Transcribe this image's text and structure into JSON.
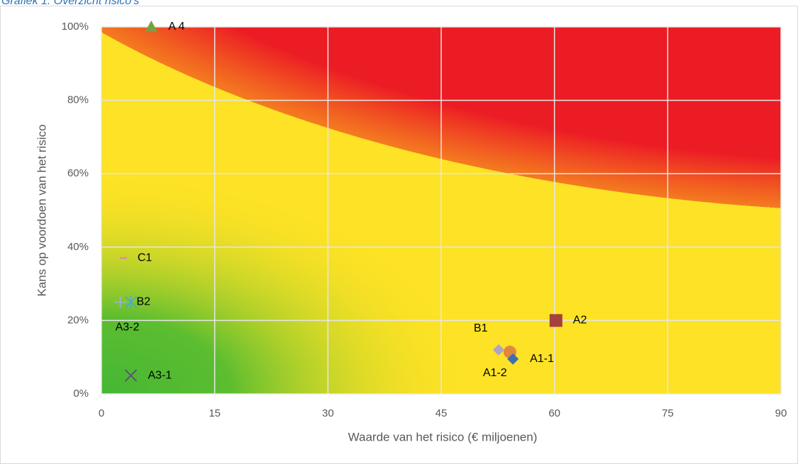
{
  "chart_data": {
    "type": "scatter",
    "title": "Grafiek 1: Overzicht risico's",
    "x_label": "Waarde van het risico (€ miljoenen)",
    "y_label": "Kans op voordoen van het risico",
    "xlim": [
      0,
      90
    ],
    "xticks": [
      0,
      15,
      30,
      45,
      60,
      75,
      90
    ],
    "ylim": [
      0,
      100
    ],
    "yticks": [
      {
        "value": 0,
        "label": "0%"
      },
      {
        "value": 20,
        "label": "20%"
      },
      {
        "value": 40,
        "label": "40%"
      },
      {
        "value": 60,
        "label": "60%"
      },
      {
        "value": 80,
        "label": "80%"
      },
      {
        "value": 100,
        "label": "100%"
      }
    ],
    "grid": true,
    "series": [
      {
        "name": "A 4",
        "color": "#77a043",
        "marker": "triangle",
        "x": [
          6.6
        ],
        "values": [
          100
        ]
      },
      {
        "name": "A2",
        "color": "#a5403c",
        "marker": "square",
        "x": [
          60.2
        ],
        "values": [
          20
        ]
      },
      {
        "name": "C1",
        "color": "#d99594",
        "marker": "dash",
        "x": [
          2.9
        ],
        "values": [
          37
        ]
      },
      {
        "name": "B2",
        "color": "#4aacc6",
        "marker": "asterisk",
        "x": [
          3.9
        ],
        "values": [
          25
        ]
      },
      {
        "name": "A3-2",
        "color": "#95b3d7",
        "marker": "plus",
        "x": [
          2.5
        ],
        "values": [
          25
        ]
      },
      {
        "name": "A3-1",
        "color": "#604a7b",
        "marker": "cross",
        "x": [
          3.9
        ],
        "values": [
          5
        ]
      },
      {
        "name": "B1",
        "color": "#b2a2c7",
        "marker": "diamond",
        "x": [
          52.6
        ],
        "values": [
          12
        ]
      },
      {
        "name": "A1-2",
        "color": "#e0883e",
        "marker": "circle",
        "x": [
          54.1
        ],
        "values": [
          11.4
        ]
      },
      {
        "name": "A1-1",
        "color": "#3e6eb0",
        "marker": "diamond",
        "x": [
          54.5
        ],
        "values": [
          9.5
        ]
      }
    ]
  }
}
